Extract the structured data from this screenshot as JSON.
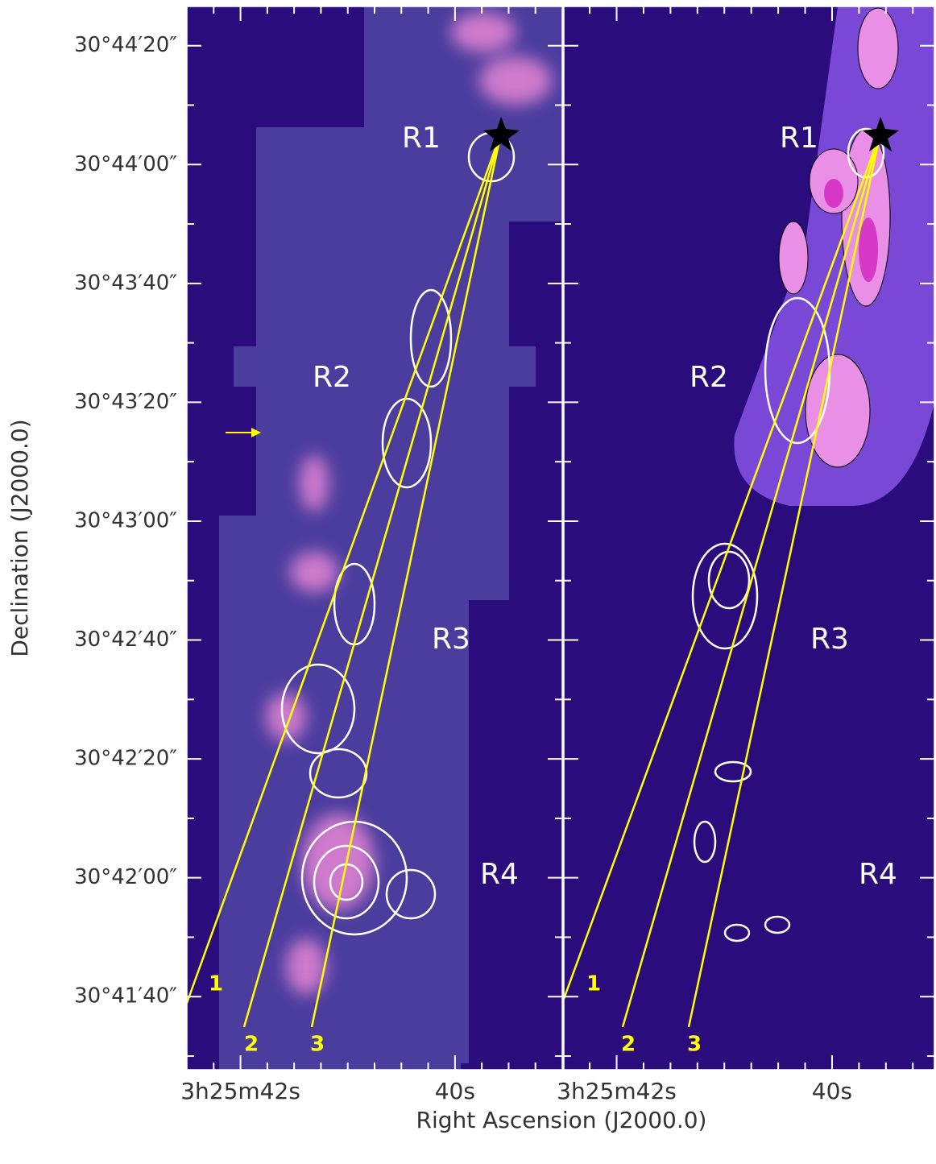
{
  "chart_data": {
    "type": "image",
    "xlabel": "Right Ascension (J2000.0)",
    "ylabel": "Declination (J2000.0)",
    "ylim": [
      2487.7,
      2666.6
    ],
    "yticks": [
      {
        "value": 2660,
        "label": "30°44′20″"
      },
      {
        "value": 2640,
        "label": "30°44′00″"
      },
      {
        "value": 2620,
        "label": "30°43′40″"
      },
      {
        "value": 2600,
        "label": "30°43′20″"
      },
      {
        "value": 2580,
        "label": "30°43′00″"
      },
      {
        "value": 2560,
        "label": "30°42′40″"
      },
      {
        "value": 2540,
        "label": "30°42′20″"
      },
      {
        "value": 2520,
        "label": "30°42′00″"
      },
      {
        "value": 2500,
        "label": "30°41′40″"
      }
    ],
    "yminorticks": [
      2490,
      2510,
      2530,
      2550,
      2570,
      2590,
      2610,
      2630,
      2650
    ],
    "panels": [
      {
        "xlim": [
          42.5,
          39.0
        ],
        "xticks": [
          {
            "value": 42,
            "label": "3h25m42s"
          },
          {
            "value": 40,
            "label": "40s"
          }
        ],
        "xminorticks": [
          42.25,
          41.75,
          41.5,
          41.25,
          41,
          40.75,
          40.5,
          40.25,
          39.75,
          39.5,
          39.25
        ],
        "regions": [
          "R1",
          "R2",
          "R3",
          "R4"
        ],
        "cuts": [
          "1",
          "2",
          "3"
        ]
      },
      {
        "xlim": [
          42.49,
          39.05
        ],
        "xticks": [
          {
            "value": 42,
            "label": "3h25m42s"
          },
          {
            "value": 40,
            "label": "40s"
          }
        ],
        "xminorticks": [
          42.25,
          41.75,
          41.5,
          41.25,
          41,
          40.75,
          40.5,
          40.25,
          39.75,
          39.5,
          39.25
        ],
        "regions": [
          "R1",
          "R2",
          "R3",
          "R4"
        ],
        "cuts": [
          "1",
          "2",
          "3"
        ]
      }
    ]
  }
}
